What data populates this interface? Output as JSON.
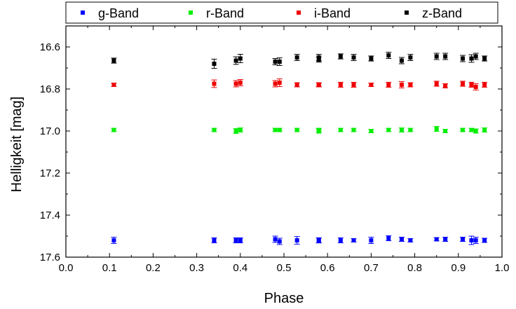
{
  "chart_data": {
    "type": "scatter",
    "title": "",
    "xlabel": "Phase",
    "ylabel": "Helligkeit [mag]",
    "xlim": [
      0.0,
      1.0
    ],
    "ylim": [
      16.5,
      17.6
    ],
    "y_inverted": true,
    "x_ticks": [
      "0.0",
      "0.1",
      "0.2",
      "0.3",
      "0.4",
      "0.5",
      "0.6",
      "0.7",
      "0.8",
      "0.9",
      "1.0"
    ],
    "y_ticks": [
      "16.6",
      "16.8",
      "17.0",
      "17.2",
      "17.4",
      "17.6"
    ],
    "legend_position": "top",
    "grid": false,
    "series": [
      {
        "name": "g-Band",
        "color": "#0000ff",
        "x": [
          0.11,
          0.34,
          0.39,
          0.4,
          0.48,
          0.49,
          0.53,
          0.58,
          0.58,
          0.63,
          0.66,
          0.7,
          0.74,
          0.77,
          0.79,
          0.85,
          0.87,
          0.91,
          0.93,
          0.94,
          0.96
        ],
        "y": [
          17.52,
          17.52,
          17.52,
          17.52,
          17.515,
          17.525,
          17.52,
          17.52,
          17.52,
          17.52,
          17.52,
          17.52,
          17.51,
          17.515,
          17.52,
          17.515,
          17.515,
          17.515,
          17.52,
          17.52,
          17.52
        ],
        "err": [
          0.015,
          0.012,
          0.012,
          0.012,
          0.015,
          0.015,
          0.018,
          0.012,
          0.012,
          0.012,
          0.008,
          0.015,
          0.012,
          0.01,
          0.008,
          0.008,
          0.01,
          0.01,
          0.02,
          0.015,
          0.01
        ]
      },
      {
        "name": "r-Band",
        "color": "#00ee00",
        "x": [
          0.11,
          0.34,
          0.39,
          0.4,
          0.48,
          0.49,
          0.53,
          0.58,
          0.58,
          0.63,
          0.66,
          0.7,
          0.74,
          0.77,
          0.79,
          0.85,
          0.87,
          0.91,
          0.93,
          0.94,
          0.96
        ],
        "y": [
          16.995,
          16.995,
          17.0,
          16.995,
          16.995,
          16.995,
          16.995,
          17.0,
          16.995,
          16.995,
          16.995,
          17.0,
          16.995,
          16.995,
          16.995,
          16.99,
          17.0,
          16.995,
          16.995,
          17.0,
          16.995
        ],
        "err": [
          0.008,
          0.008,
          0.012,
          0.01,
          0.008,
          0.008,
          0.008,
          0.01,
          0.008,
          0.008,
          0.008,
          0.008,
          0.008,
          0.01,
          0.008,
          0.012,
          0.008,
          0.008,
          0.008,
          0.01,
          0.01
        ]
      },
      {
        "name": "i-Band",
        "color": "#ee0000",
        "x": [
          0.11,
          0.34,
          0.39,
          0.4,
          0.48,
          0.49,
          0.53,
          0.58,
          0.58,
          0.63,
          0.66,
          0.7,
          0.74,
          0.77,
          0.79,
          0.85,
          0.87,
          0.91,
          0.93,
          0.94,
          0.96
        ],
        "y": [
          16.78,
          16.775,
          16.775,
          16.77,
          16.775,
          16.77,
          16.78,
          16.78,
          16.78,
          16.78,
          16.78,
          16.78,
          16.78,
          16.78,
          16.78,
          16.775,
          16.785,
          16.775,
          16.78,
          16.79,
          16.78
        ],
        "err": [
          0.008,
          0.018,
          0.015,
          0.015,
          0.015,
          0.018,
          0.01,
          0.01,
          0.008,
          0.012,
          0.012,
          0.008,
          0.012,
          0.015,
          0.01,
          0.012,
          0.01,
          0.012,
          0.012,
          0.015,
          0.012
        ]
      },
      {
        "name": "z-Band",
        "color": "#000000",
        "x": [
          0.11,
          0.34,
          0.39,
          0.4,
          0.48,
          0.49,
          0.53,
          0.58,
          0.58,
          0.63,
          0.66,
          0.7,
          0.74,
          0.77,
          0.79,
          0.85,
          0.87,
          0.91,
          0.93,
          0.94,
          0.96
        ],
        "y": [
          16.665,
          16.68,
          16.665,
          16.655,
          16.67,
          16.67,
          16.65,
          16.65,
          16.66,
          16.645,
          16.65,
          16.655,
          16.64,
          16.665,
          16.65,
          16.645,
          16.645,
          16.655,
          16.655,
          16.645,
          16.655
        ],
        "err": [
          0.012,
          0.022,
          0.018,
          0.02,
          0.015,
          0.018,
          0.015,
          0.015,
          0.012,
          0.012,
          0.015,
          0.012,
          0.015,
          0.015,
          0.015,
          0.015,
          0.015,
          0.015,
          0.018,
          0.015,
          0.012
        ]
      }
    ]
  }
}
